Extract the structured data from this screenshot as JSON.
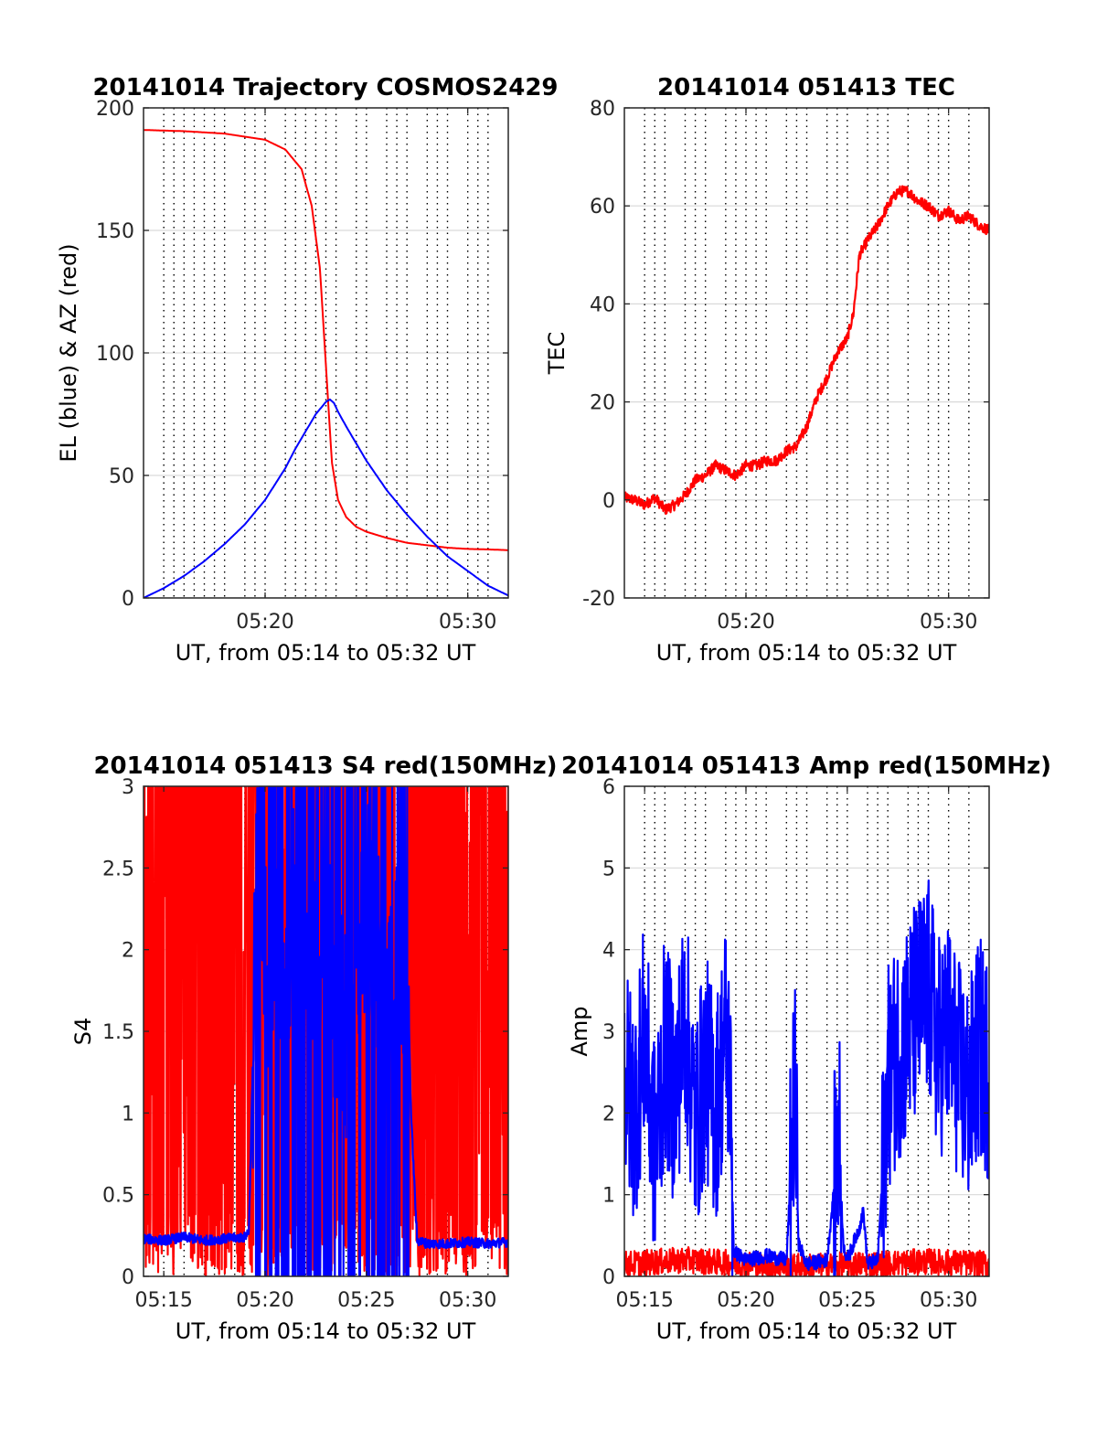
{
  "colors": {
    "red": "#ff0000",
    "blue": "#0000ff",
    "grid": "#d9d9d9",
    "axis": "#262626",
    "vline": "#000000"
  },
  "chart_data": [
    {
      "type": "line",
      "title": "20141014 Trajectory COSMOS2429",
      "xlabel": "UT, from 05:14 to 05:32 UT",
      "ylabel": "EL (blue) & AZ (red)",
      "xlim": [
        0,
        18
      ],
      "ylim": [
        0,
        200
      ],
      "xticks": [
        6,
        16
      ],
      "xtick_labels": [
        "05:20",
        "05:30"
      ],
      "yticks": [
        0,
        50,
        100,
        150,
        200
      ],
      "ytick_labels": [
        "0",
        "50",
        "100",
        "150",
        "200"
      ],
      "grid": "horizontal",
      "vertical_dotted_lines_minutes": [
        1,
        1.5,
        2,
        2.5,
        3,
        3.5,
        4,
        5,
        5.5,
        6,
        7,
        7.5,
        8,
        8.5,
        9,
        9.5,
        10.5,
        11,
        12,
        12.5,
        13,
        14,
        14.5,
        15,
        16,
        16.5,
        17
      ],
      "series": [
        {
          "color": "red",
          "x": [
            0,
            2,
            4,
            6,
            7,
            7.8,
            8.3,
            8.7,
            9,
            9.3,
            9.6,
            10,
            10.5,
            11,
            12,
            13,
            14,
            15,
            16,
            17,
            18
          ],
          "values": [
            191,
            190.5,
            189.5,
            187,
            183,
            175,
            160,
            135,
            95,
            55,
            40,
            33,
            29,
            27,
            24.5,
            22.5,
            21.5,
            20.5,
            20,
            19.8,
            19.5
          ]
        },
        {
          "color": "blue",
          "x": [
            0,
            1,
            2,
            3,
            4,
            5,
            6,
            7,
            7.5,
            8,
            8.5,
            9,
            9.2,
            9.4,
            9.6,
            10,
            10.5,
            11,
            12,
            13,
            14,
            15,
            16,
            17,
            18
          ],
          "values": [
            0,
            4,
            9,
            15,
            22,
            30,
            40,
            53,
            61,
            68,
            75,
            80,
            81,
            79.5,
            76,
            70,
            63,
            56,
            44,
            34,
            25,
            17,
            11,
            5,
            1
          ]
        }
      ]
    },
    {
      "type": "line",
      "title": "20141014 051413 TEC",
      "xlabel": "UT, from 05:14 to 05:32 UT",
      "ylabel": "TEC",
      "xlim": [
        0,
        18
      ],
      "ylim": [
        -20,
        80
      ],
      "xticks": [
        6,
        16
      ],
      "xtick_labels": [
        "05:20",
        "05:30"
      ],
      "yticks": [
        -20,
        0,
        20,
        40,
        60,
        80
      ],
      "ytick_labels": [
        "-20",
        "0",
        "20",
        "40",
        "60",
        "80"
      ],
      "grid": "horizontal",
      "vertical_dotted_lines_minutes": [
        1,
        1.5,
        2,
        3,
        3.5,
        4,
        5,
        5.5,
        6,
        6.5,
        7,
        8,
        8.5,
        9,
        10,
        10.5,
        11,
        12,
        12.5,
        13,
        14,
        15,
        15.5,
        16,
        17
      ],
      "series": [
        {
          "color": "red",
          "x": [
            0,
            0.5,
            1,
            1.5,
            2,
            2.5,
            3,
            3.5,
            4,
            4.5,
            5,
            5.5,
            6,
            6.5,
            7,
            7.5,
            8,
            8.5,
            9,
            9.5,
            10,
            10.5,
            11,
            11.3,
            11.6,
            12,
            12.5,
            13,
            13.5,
            14,
            14.5,
            15,
            15.5,
            16,
            16.5,
            17,
            17.5,
            18
          ],
          "values": [
            0.5,
            0,
            -1,
            0.5,
            -2,
            -1,
            1,
            4,
            5,
            7,
            6,
            5,
            7,
            7,
            8,
            8,
            10,
            11,
            15,
            21,
            25,
            30,
            33,
            38,
            50,
            53,
            56,
            60,
            63,
            63,
            61,
            60,
            58,
            59,
            57,
            58,
            56,
            55
          ]
        }
      ]
    },
    {
      "type": "line",
      "title": "20141014 051413 S4 red(150MHz)",
      "xlabel": "UT, from 05:14 to 05:32 UT",
      "ylabel": "S4",
      "xlim": [
        0,
        18
      ],
      "ylim": [
        0,
        3
      ],
      "xticks": [
        1,
        6,
        11,
        16
      ],
      "xtick_labels": [
        "05:15",
        "05:20",
        "05:25",
        "05:30"
      ],
      "yticks": [
        0,
        0.5,
        1,
        1.5,
        2,
        2.5,
        3
      ],
      "ytick_labels": [
        "0",
        "0.5",
        "1",
        "1.5",
        "2",
        "2.5",
        "3"
      ],
      "grid": "horizontal",
      "vertical_dotted_lines_minutes": [
        1,
        1.5,
        2,
        3,
        3.5,
        4,
        4.5,
        5,
        6,
        6.5,
        7,
        8,
        8.5,
        9,
        10,
        10.5,
        11,
        12,
        12.5,
        13,
        14,
        14.5,
        15,
        16,
        17
      ],
      "series": [
        {
          "color": "red",
          "note_range": [
            0,
            3
          ],
          "x": [
            0,
            2,
            4,
            6,
            8,
            10,
            12,
            14,
            16,
            18
          ],
          "values": [
            2.4,
            2.0,
            2.6,
            1.5,
            2.2,
            1.8,
            2.4,
            1.6,
            2.1,
            2.3
          ]
        },
        {
          "color": "blue",
          "x": [
            0,
            1,
            2,
            3,
            4,
            5,
            5.2,
            5.6,
            6,
            6.5,
            7,
            7.5,
            8,
            9,
            10,
            11,
            12,
            13,
            13.2,
            13.5,
            14,
            15,
            16,
            17,
            18
          ],
          "values": [
            0.23,
            0.22,
            0.24,
            0.22,
            0.23,
            0.24,
            0.28,
            2.4,
            1.9,
            2.2,
            1.5,
            2.6,
            1.8,
            2.0,
            1.4,
            2.3,
            1.6,
            2.1,
            1.0,
            0.22,
            0.2,
            0.2,
            0.21,
            0.2,
            0.21
          ]
        }
      ]
    },
    {
      "type": "line",
      "title": "20141014 051413 Amp red(150MHz)",
      "xlabel": "UT, from 05:14 to 05:32 UT",
      "ylabel": "Amp",
      "xlim": [
        0,
        18
      ],
      "ylim": [
        0,
        6
      ],
      "xticks": [
        1,
        6,
        11,
        16
      ],
      "xtick_labels": [
        "05:15",
        "05:20",
        "05:25",
        "05:30"
      ],
      "yticks": [
        0,
        1,
        2,
        3,
        4,
        5,
        6
      ],
      "ytick_labels": [
        "0",
        "1",
        "2",
        "3",
        "4",
        "5",
        "6"
      ],
      "grid": "horizontal",
      "vertical_dotted_lines_minutes": [
        1,
        1.5,
        2,
        3,
        3.5,
        4,
        5,
        5.5,
        6,
        6.5,
        7,
        8,
        8.5,
        9,
        10,
        10.5,
        11,
        12,
        12.5,
        13,
        14,
        14.5,
        15,
        16,
        17
      ],
      "series": [
        {
          "color": "red",
          "x": [
            0,
            3,
            6,
            9,
            12,
            15,
            18
          ],
          "values": [
            0.15,
            0.2,
            0.15,
            0.12,
            0.15,
            0.18,
            0.15
          ]
        },
        {
          "color": "blue",
          "x": [
            0,
            0.5,
            1,
            1.5,
            2,
            2.5,
            3,
            3.5,
            4,
            4.5,
            5,
            5.2,
            5.4,
            6,
            7,
            8,
            8.2,
            8.4,
            8.6,
            9,
            10,
            10.4,
            10.6,
            10.8,
            11,
            11.6,
            11.8,
            12,
            12.5,
            13,
            13.5,
            14,
            14.5,
            15,
            15.5,
            16,
            16.5,
            17,
            17.5,
            18
          ],
          "values": [
            2.5,
            2.0,
            3.0,
            1.5,
            2.8,
            2.2,
            3.2,
            1.8,
            2.6,
            2.0,
            3.0,
            2.5,
            0.3,
            0.2,
            0.25,
            0.2,
            1.2,
            2.4,
            0.4,
            0.15,
            0.2,
            1.2,
            1.7,
            0.4,
            0.2,
            0.6,
            0.8,
            0.15,
            0.2,
            2.4,
            2.8,
            3.0,
            3.3,
            3.5,
            2.8,
            3.0,
            2.5,
            2.2,
            2.8,
            2.5
          ]
        }
      ]
    }
  ]
}
